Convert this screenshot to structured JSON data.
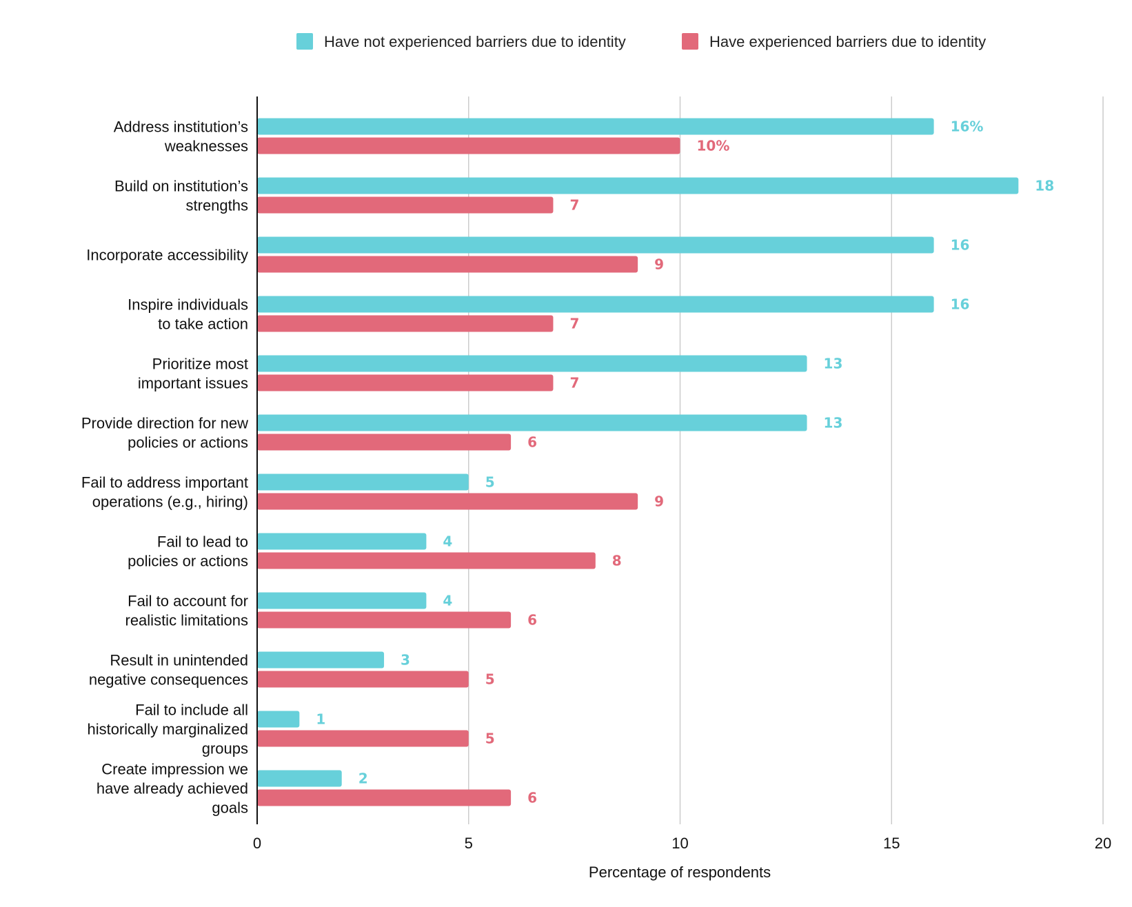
{
  "chart_data": {
    "type": "bar",
    "orientation": "horizontal",
    "title": "",
    "xlabel": "Percentage of respondents",
    "ylabel": "",
    "xlim": [
      0,
      20
    ],
    "xticks": [
      "0",
      "5",
      "10",
      "15",
      "20"
    ],
    "grid": true,
    "legend_position": "top-right",
    "categories": [
      [
        "Address institution’s",
        "weaknesses"
      ],
      [
        "Build on institution’s",
        "strengths"
      ],
      [
        "Incorporate accessibility"
      ],
      [
        "Inspire individuals",
        "to take action"
      ],
      [
        "Prioritize most",
        "important issues"
      ],
      [
        "Provide direction for new",
        "policies or actions"
      ],
      [
        "Fail to address important",
        "operations (e.g., hiring)"
      ],
      [
        "Fail to lead to",
        "policies or actions"
      ],
      [
        "Fail to account for",
        "realistic limitations"
      ],
      [
        "Result in unintended",
        "negative consequences"
      ],
      [
        "Fail to include all",
        "historically marginalized",
        "groups"
      ],
      [
        "Create impression we",
        "have already achieved",
        "goals"
      ]
    ],
    "series": [
      {
        "name": "Have not experienced barriers due to identity",
        "color": "#67D0DA",
        "values": [
          16,
          18,
          16,
          16,
          13,
          13,
          5,
          4,
          4,
          3,
          1,
          2
        ],
        "labels": [
          "16%",
          "18",
          "16",
          "16",
          "13",
          "13",
          "5",
          "4",
          "4",
          "3",
          "1",
          "2"
        ]
      },
      {
        "name": "Have experienced barriers due to identity",
        "color": "#E2697A",
        "values": [
          10,
          7,
          9,
          7,
          7,
          6,
          9,
          8,
          6,
          5,
          5,
          6
        ],
        "labels": [
          "10%",
          "7",
          "9",
          "7",
          "7",
          "6",
          "9",
          "8",
          "6",
          "5",
          "5",
          "6"
        ]
      }
    ]
  }
}
